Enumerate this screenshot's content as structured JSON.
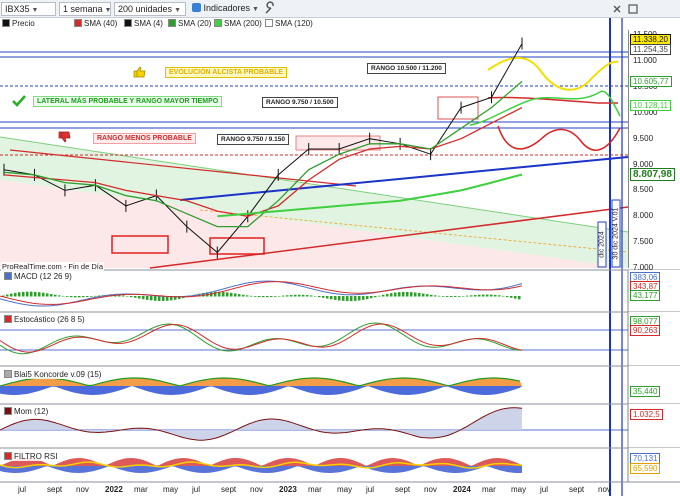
{
  "toolbar": {
    "symbol": "IBX35",
    "timeframe": "1 semana",
    "units": "200 unidades",
    "indicators": "Indicadores"
  },
  "legend": {
    "items": [
      {
        "label": "Precio",
        "color": "#111111"
      },
      {
        "label": "SMA (40)",
        "color": "#d42a2a"
      },
      {
        "label": "SMA (4)",
        "color": "#111111"
      },
      {
        "label": "SMA (20)",
        "color": "#2e9e2e"
      },
      {
        "label": "SMA (200)",
        "color": "#3fcf3f"
      },
      {
        "label": "SMA (120)",
        "color": "#ffffff"
      }
    ]
  },
  "annotations": {
    "evolucion": "EVOLUCIÓN ALCISTA PROBABLE",
    "lateral": "LATERAL MÁS PROBABLE Y RANGO MAYOR TIEMPO",
    "rango_menos": "RANGO MENOS PROBABLE",
    "box_top": "RANGO 10.500 / 11.200",
    "box_mid": "RANGO 9.750 / 10.500",
    "box_low": "RANGO 9.750 / 9.150",
    "source": "ProRealTime.com - Fin de Día",
    "date_a": "dic 2024",
    "date_b": "30 dic 2024 V.01"
  },
  "price_axis": {
    "ticks": [
      "11.500",
      "11.000",
      "10.500",
      "10.000",
      "9.500",
      "9.000",
      "8.500",
      "8.000",
      "7.500",
      "7.000"
    ],
    "tags": [
      {
        "text": "11.338,20",
        "color": "#111111",
        "bg": "#ffe900"
      },
      {
        "text": "11.254,35",
        "color": "#444444",
        "bg": "#ffffff"
      },
      {
        "text": "10.605,77",
        "color": "#2e9e2e",
        "bg": "#ffffff"
      },
      {
        "text": "10.128,11",
        "color": "#3fcf3f",
        "bg": "#ffffff"
      },
      {
        "text": "8.807,98",
        "color": "#1e7d1e",
        "bg": "#ffffff"
      }
    ]
  },
  "panels": {
    "macd": {
      "title": "MACD (12 26 9)",
      "tags": [
        "383,06",
        "343,87",
        "43,177"
      ]
    },
    "esto": {
      "title": "Estocástico (26 8 5)",
      "tags": [
        "98,077",
        "90,263"
      ]
    },
    "blai": {
      "title": "Blai5 Koncorde v.09 (15)",
      "tags": [
        "35,440"
      ]
    },
    "mom": {
      "title": "Mom (12)",
      "tags": [
        "1.032,5"
      ]
    },
    "rsi": {
      "title": "FILTRO RSI",
      "tags": [
        "70,131",
        "65,590"
      ]
    }
  },
  "x_axis": {
    "labels": [
      {
        "text": "jul",
        "year": false
      },
      {
        "text": "sept",
        "year": false
      },
      {
        "text": "nov",
        "year": false
      },
      {
        "text": "2022",
        "year": true
      },
      {
        "text": "mar",
        "year": false
      },
      {
        "text": "may",
        "year": false
      },
      {
        "text": "jul",
        "year": false
      },
      {
        "text": "sept",
        "year": false
      },
      {
        "text": "nov",
        "year": false
      },
      {
        "text": "2023",
        "year": true
      },
      {
        "text": "mar",
        "year": false
      },
      {
        "text": "may",
        "year": false
      },
      {
        "text": "jul",
        "year": false
      },
      {
        "text": "sept",
        "year": false
      },
      {
        "text": "nov",
        "year": false
      },
      {
        "text": "2024",
        "year": true
      },
      {
        "text": "mar",
        "year": false
      },
      {
        "text": "may",
        "year": false
      },
      {
        "text": "jul",
        "year": false
      },
      {
        "text": "sept",
        "year": false
      },
      {
        "text": "nov",
        "year": false
      }
    ]
  },
  "chart_data": {
    "type": "line",
    "title": "",
    "ylim": [
      7000,
      11600
    ],
    "grid": false,
    "x": [
      "2021-07",
      "2021-09",
      "2021-11",
      "2022-01",
      "2022-03",
      "2022-05",
      "2022-07",
      "2022-09",
      "2022-11",
      "2023-01",
      "2023-03",
      "2023-05",
      "2023-07",
      "2023-09",
      "2023-11",
      "2024-01",
      "2024-03",
      "2024-05"
    ],
    "series": [
      {
        "name": "Precio",
        "values": [
          8900,
          8800,
          8500,
          8600,
          8200,
          8400,
          7800,
          7300,
          8000,
          8800,
          9300,
          9300,
          9500,
          9400,
          9200,
          10100,
          10300,
          11338
        ]
      },
      {
        "name": "SMA (40)",
        "values": [
          8800,
          8750,
          8700,
          8650,
          8500,
          8400,
          8300,
          8100,
          8000,
          8200,
          8700,
          9100,
          9300,
          9350,
          9300,
          9500,
          9800,
          10100
        ]
      },
      {
        "name": "SMA (20)",
        "values": [
          8850,
          8800,
          8650,
          8600,
          8400,
          8300,
          8050,
          7800,
          7800,
          8300,
          8900,
          9200,
          9400,
          9400,
          9300,
          9700,
          10100,
          10606
        ]
      },
      {
        "name": "SMA (200)",
        "values": [
          null,
          null,
          null,
          null,
          null,
          null,
          null,
          8000,
          8050,
          8100,
          8150,
          8200,
          8250,
          8300,
          8400,
          8500,
          8650,
          8808
        ]
      }
    ]
  }
}
